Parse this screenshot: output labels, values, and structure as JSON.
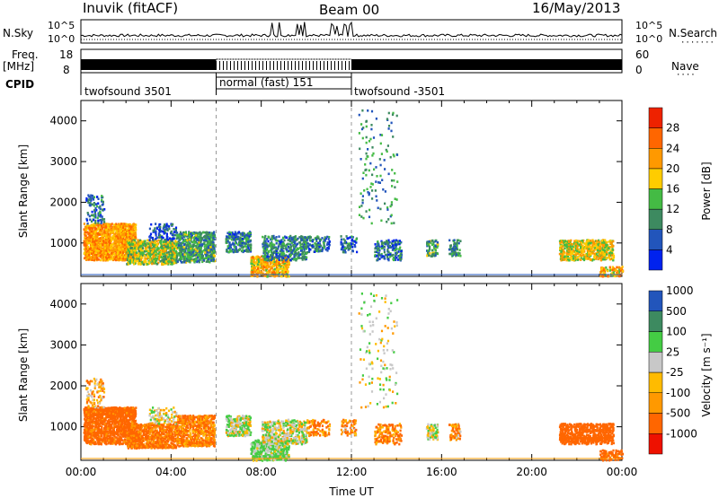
{
  "header": {
    "station": "Inuvik (fitACF)",
    "beam": "Beam 00",
    "date": "16/May/2013"
  },
  "summary_panels": {
    "nsky_label": "N.Sky",
    "nsearch_label": "N.Search",
    "nsky_ticks": [
      "10^5",
      "10^0"
    ],
    "nsearch_ticks": [
      "10^5",
      "10^0"
    ],
    "freq_label": "Freq.",
    "freq_unit": "[MHz]",
    "freq_ticks": [
      "18",
      "8"
    ],
    "nave_label": "Nave",
    "nave_ticks": [
      "60",
      "0"
    ],
    "cpid_label": "CPID",
    "cpid_segments": [
      {
        "label": "twofsound 3501",
        "start": 0,
        "end": 6
      },
      {
        "label": "normal (fast) 151",
        "start": 6,
        "end": 12
      },
      {
        "label": "twofsound -3501",
        "start": 12,
        "end": 24
      }
    ]
  },
  "colors": {
    "power": [
      "#0022ee",
      "#2255bb",
      "#3d8a60",
      "#44bb44",
      "#ffcc00",
      "#ff9900",
      "#ff6600",
      "#ee2200"
    ],
    "velocity": [
      "#ee1100",
      "#ff6600",
      "#ff9900",
      "#ffbb00",
      "#c8c8c8",
      "#44cc44",
      "#3d8a60",
      "#2255bb"
    ]
  },
  "chart_data": [
    {
      "type": "heatmap",
      "name": "power",
      "ylabel": "Slant Range [km]",
      "yticks": [
        1000,
        2000,
        3000,
        4000
      ],
      "ylim": [
        180,
        4500
      ],
      "xlim": [
        0,
        24
      ],
      "colorbar_label": "Power [dB]",
      "colorbar_ticks": [
        "4",
        "8",
        "12",
        "16",
        "20",
        "24",
        "28"
      ],
      "colorbar_range": [
        0,
        32
      ]
    },
    {
      "type": "heatmap",
      "name": "velocity",
      "ylabel": "Slant Range [km]",
      "yticks": [
        1000,
        2000,
        3000,
        4000
      ],
      "ylim": [
        180,
        4500
      ],
      "xlim": [
        0,
        24
      ],
      "xlabel": "Time UT",
      "xticks": [
        "00:00",
        "04:00",
        "08:00",
        "12:00",
        "16:00",
        "20:00",
        "00:00"
      ],
      "colorbar_label": "Velocity [m s⁻¹]",
      "colorbar_ticks": [
        "-1000",
        "-500",
        "-100",
        "-25",
        "25",
        "100",
        "500",
        "1000"
      ]
    }
  ],
  "scatter_regions": [
    {
      "t0": 0.1,
      "t1": 2.4,
      "r0": 600,
      "r1": 1500,
      "density": 0.95,
      "p": 22,
      "v": -200
    },
    {
      "t0": 0.2,
      "t1": 1.0,
      "r0": 1500,
      "r1": 2200,
      "density": 0.25,
      "p": 8,
      "v": -50
    },
    {
      "t0": 2.0,
      "t1": 4.2,
      "r0": 500,
      "r1": 1100,
      "density": 0.8,
      "p": 16,
      "v": -150
    },
    {
      "t0": 4.2,
      "t1": 5.9,
      "r0": 550,
      "r1": 1300,
      "density": 0.75,
      "p": 11,
      "v": -120
    },
    {
      "t0": 3.0,
      "t1": 4.2,
      "r0": 1100,
      "r1": 1500,
      "density": 0.3,
      "p": 6,
      "v": 60
    },
    {
      "t0": 6.4,
      "t1": 7.5,
      "r0": 800,
      "r1": 1300,
      "density": 0.6,
      "p": 9,
      "v": 80
    },
    {
      "t0": 7.5,
      "t1": 9.2,
      "r0": 200,
      "r1": 700,
      "density": 0.7,
      "p": 20,
      "v": 120
    },
    {
      "t0": 8.0,
      "t1": 10.0,
      "r0": 600,
      "r1": 1200,
      "density": 0.5,
      "p": 9,
      "v": 60
    },
    {
      "t0": 10.0,
      "t1": 11.0,
      "r0": 800,
      "r1": 1200,
      "density": 0.4,
      "p": 8,
      "v": -100
    },
    {
      "t0": 11.5,
      "t1": 12.2,
      "r0": 800,
      "r1": 1200,
      "density": 0.35,
      "p": 8,
      "v": -80
    },
    {
      "t0": 13.0,
      "t1": 14.2,
      "r0": 600,
      "r1": 1100,
      "density": 0.4,
      "p": 8,
      "v": -100
    },
    {
      "t0": 15.3,
      "t1": 15.8,
      "r0": 700,
      "r1": 1100,
      "density": 0.55,
      "p": 12,
      "v": 60
    },
    {
      "t0": 16.3,
      "t1": 16.8,
      "r0": 700,
      "r1": 1100,
      "density": 0.5,
      "p": 10,
      "v": -80
    },
    {
      "t0": 21.2,
      "t1": 23.6,
      "r0": 600,
      "r1": 1100,
      "density": 0.75,
      "p": 18,
      "v": -300
    },
    {
      "t0": 23.0,
      "t1": 24.0,
      "r0": 200,
      "r1": 450,
      "density": 0.55,
      "p": 20,
      "v": -200
    },
    {
      "t0": 12.3,
      "t1": 14.0,
      "r0": 1500,
      "r1": 4300,
      "density": 0.04,
      "p": 10,
      "v": 50
    }
  ]
}
